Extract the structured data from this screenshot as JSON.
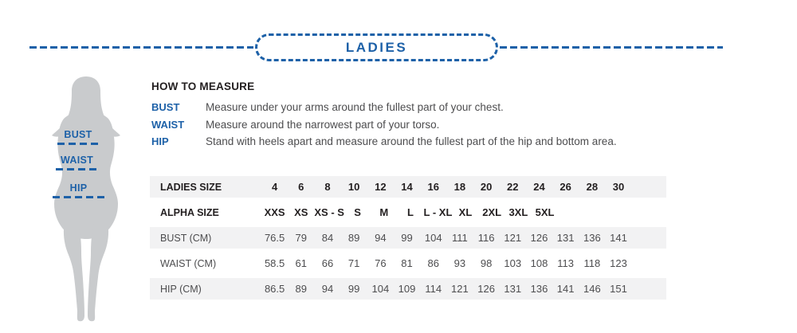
{
  "header": {
    "title": "LADIES"
  },
  "figure": {
    "labels": [
      "BUST",
      "WAIST",
      "HIP"
    ]
  },
  "how_to_measure": {
    "title": "HOW TO MEASURE",
    "items": [
      {
        "label": "BUST",
        "text": "Measure under your arms around the fullest part of your chest."
      },
      {
        "label": "WAIST",
        "text": "Measure around the narrowest part of your torso."
      },
      {
        "label": "HIP",
        "text": "Stand with heels apart and measure around the fullest part of the hip and bottom area."
      }
    ]
  },
  "size_table": {
    "rows": [
      {
        "label": "LADIES SIZE",
        "header": true,
        "values": [
          "4",
          "6",
          "8",
          "10",
          "12",
          "14",
          "16",
          "18",
          "20",
          "22",
          "24",
          "26",
          "28",
          "30"
        ]
      },
      {
        "label": "ALPHA SIZE",
        "header": true,
        "values": [
          "XXS",
          "XS",
          "XS - S",
          "S",
          "M",
          "L",
          "L - XL",
          "XL",
          "2XL",
          "3XL",
          "5XL",
          "",
          "",
          ""
        ]
      },
      {
        "label": "BUST (CM)",
        "header": false,
        "values": [
          "76.5",
          "79",
          "84",
          "89",
          "94",
          "99",
          "104",
          "111",
          "116",
          "121",
          "126",
          "131",
          "136",
          "141"
        ]
      },
      {
        "label": "WAIST (CM)",
        "header": false,
        "values": [
          "58.5",
          "61",
          "66",
          "71",
          "76",
          "81",
          "86",
          "93",
          "98",
          "103",
          "108",
          "113",
          "118",
          "123"
        ]
      },
      {
        "label": "HIP (CM)",
        "header": false,
        "values": [
          "86.5",
          "89",
          "94",
          "99",
          "104",
          "109",
          "114",
          "121",
          "126",
          "131",
          "136",
          "141",
          "146",
          "151"
        ]
      }
    ]
  },
  "colors": {
    "accent_blue": "#1d61a8",
    "stripe_grey": "#f2f2f3",
    "silhouette_grey": "#c9cbcd",
    "heading_text": "#231f20",
    "body_text": "#4d4d4f"
  }
}
